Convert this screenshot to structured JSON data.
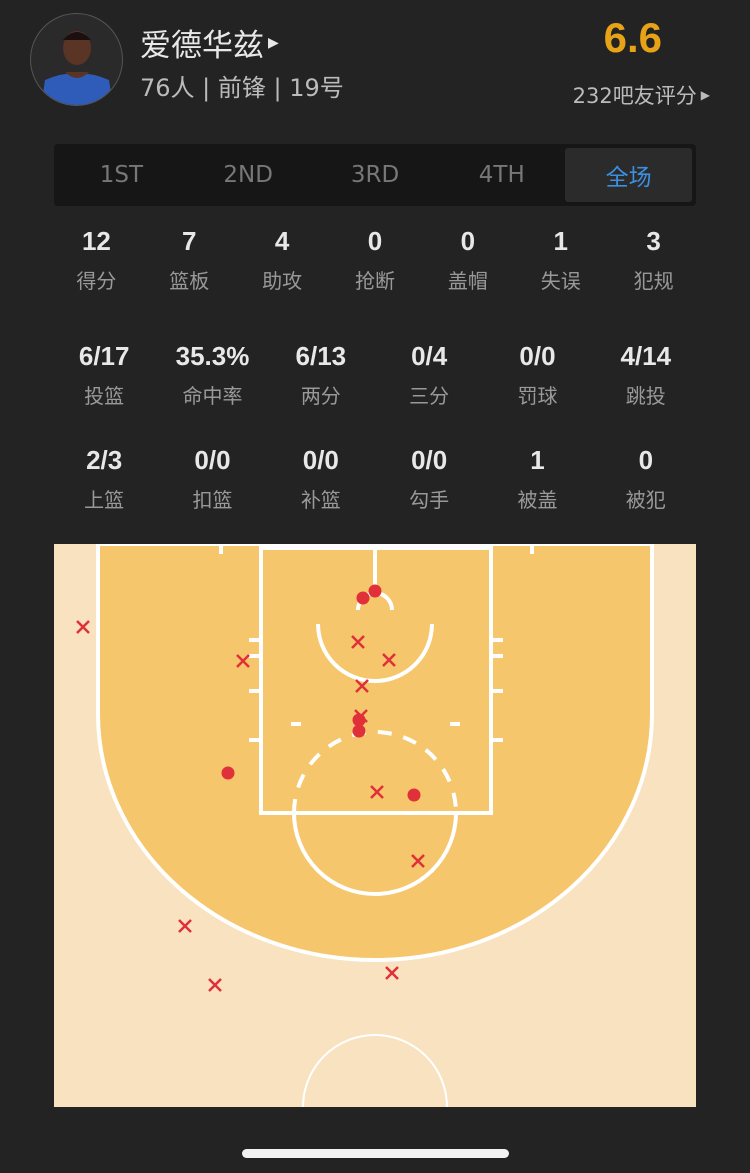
{
  "player": {
    "name": "爱德华兹",
    "info": "76人 | 前锋 | 19号",
    "rating": "6.6",
    "rating_count": "232吧友评分"
  },
  "tabs": [
    {
      "label": "1ST"
    },
    {
      "label": "2ND"
    },
    {
      "label": "3RD"
    },
    {
      "label": "4TH"
    },
    {
      "label": "全场",
      "active": true
    }
  ],
  "stats_row1": [
    {
      "v": "12",
      "l": "得分"
    },
    {
      "v": "7",
      "l": "篮板"
    },
    {
      "v": "4",
      "l": "助攻"
    },
    {
      "v": "0",
      "l": "抢断"
    },
    {
      "v": "0",
      "l": "盖帽"
    },
    {
      "v": "1",
      "l": "失误"
    },
    {
      "v": "3",
      "l": "犯规"
    }
  ],
  "stats_row2": [
    {
      "v": "6/17",
      "l": "投篮"
    },
    {
      "v": "35.3%",
      "l": "命中率"
    },
    {
      "v": "6/13",
      "l": "两分"
    },
    {
      "v": "0/4",
      "l": "三分"
    },
    {
      "v": "0/0",
      "l": "罚球"
    },
    {
      "v": "4/14",
      "l": "跳投"
    }
  ],
  "stats_row3": [
    {
      "v": "2/3",
      "l": "上篮"
    },
    {
      "v": "0/0",
      "l": "扣篮"
    },
    {
      "v": "0/0",
      "l": "补篮"
    },
    {
      "v": "0/0",
      "l": "勾手"
    },
    {
      "v": "1",
      "l": "被盖"
    },
    {
      "v": "0",
      "l": "被犯"
    }
  ],
  "shot_chart": {
    "made": 6,
    "missed": 11,
    "colors": {
      "court_outer": "#f8e2c0",
      "court_inner": "#f5c66c",
      "marker": "#e0303a",
      "rating": "#e6a317",
      "active_tab": "#3d8fe0"
    }
  }
}
